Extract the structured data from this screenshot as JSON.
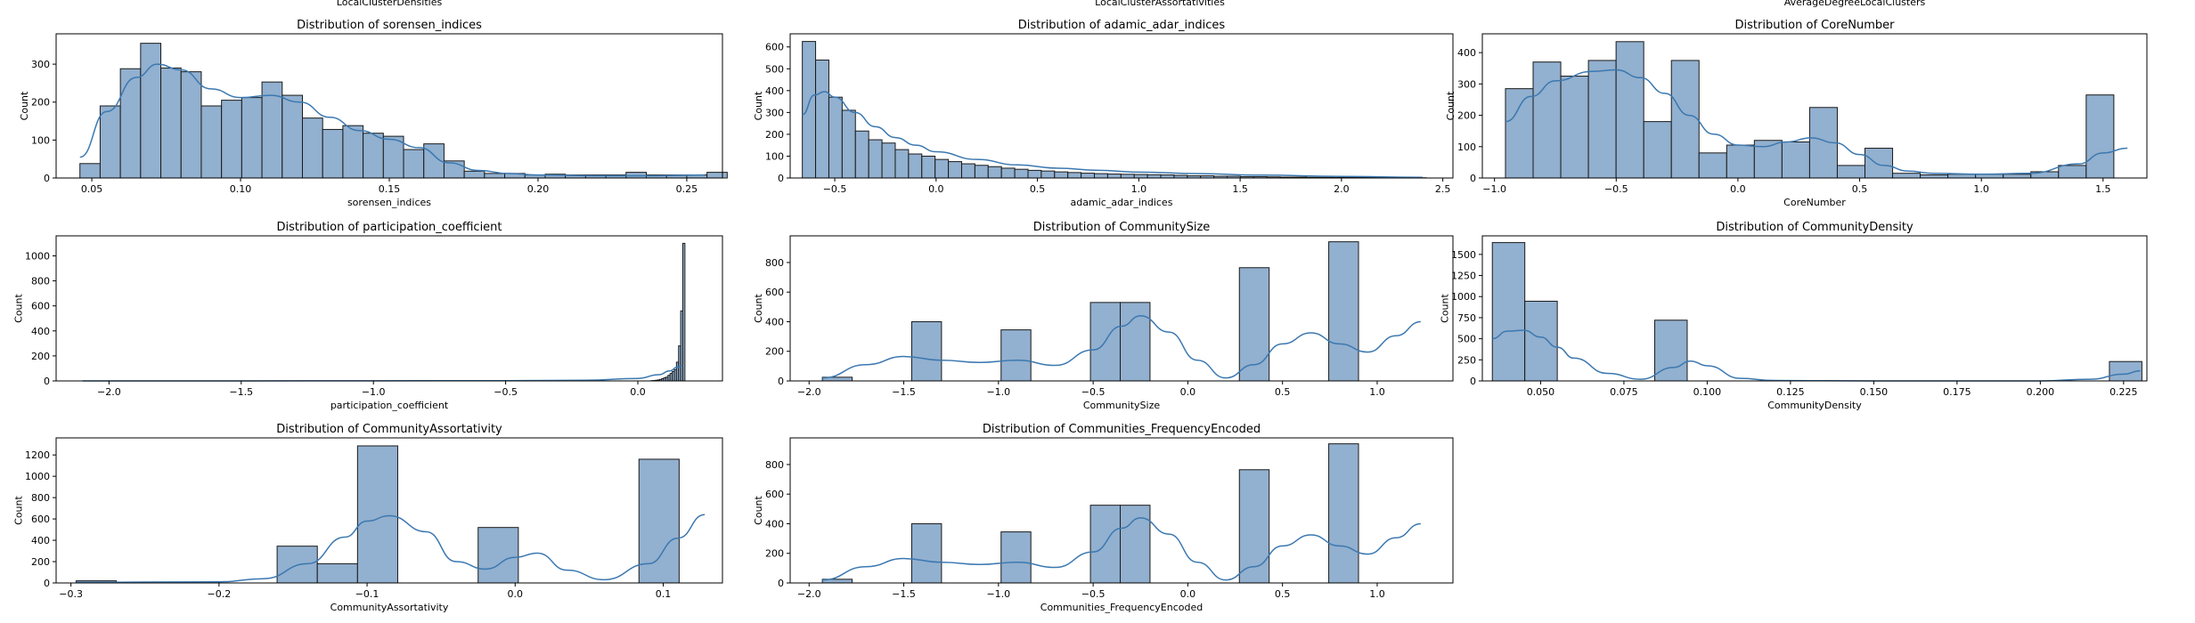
{
  "colors": {
    "bar_fill": "#92b0cf",
    "bar_edge": "#1a1a1a",
    "kde_line": "#3b78b0",
    "axes": "#000000"
  },
  "top_labels": [
    "LocalClusterDensities",
    "LocalClusterAssortativities",
    "AverageDegreeLocalClusters"
  ],
  "chart_data": [
    {
      "type": "bar",
      "title": "Distribution of sorensen_indices",
      "xlabel": "sorensen_indices",
      "ylabel": "Count",
      "xlim": [
        0.038,
        0.262
      ],
      "ylim": [
        0,
        380
      ],
      "xticks": [
        0.05,
        0.1,
        0.15,
        0.2,
        0.25
      ],
      "xtick_labels": [
        "0.05",
        "0.10",
        "0.15",
        "0.20",
        "0.25"
      ],
      "yticks": [
        0,
        100,
        200,
        300
      ],
      "ytick_labels": [
        "0",
        "100",
        "200",
        "300"
      ],
      "bin_start": 0.046,
      "bin_width": 0.0068,
      "values": [
        38,
        190,
        288,
        355,
        290,
        280,
        190,
        205,
        212,
        253,
        218,
        158,
        128,
        138,
        118,
        110,
        75,
        90,
        45,
        18,
        12,
        12,
        8,
        10,
        8,
        8,
        8,
        15,
        8,
        8,
        8,
        15
      ],
      "kde": {
        "x": [
          0.046,
          0.055,
          0.065,
          0.072,
          0.08,
          0.09,
          0.1,
          0.11,
          0.12,
          0.13,
          0.14,
          0.15,
          0.16,
          0.17,
          0.18,
          0.19,
          0.2,
          0.22,
          0.24,
          0.256
        ],
        "y": [
          55,
          175,
          265,
          300,
          285,
          235,
          212,
          218,
          200,
          160,
          125,
          102,
          80,
          40,
          20,
          12,
          8,
          6,
          6,
          8
        ]
      }
    },
    {
      "type": "bar",
      "title": "Distribution of adamic_adar_indices",
      "xlabel": "adamic_adar_indices",
      "ylabel": "Count",
      "xlim": [
        -0.72,
        2.55
      ],
      "ylim": [
        0,
        660
      ],
      "xticks": [
        -0.5,
        0.0,
        0.5,
        1.0,
        1.5,
        2.0,
        2.5
      ],
      "xtick_labels": [
        "−0.5",
        "0.0",
        "0.5",
        "1.0",
        "1.5",
        "2.0",
        "2.5"
      ],
      "yticks": [
        0,
        100,
        200,
        300,
        400,
        500,
        600
      ],
      "ytick_labels": [
        "0",
        "100",
        "200",
        "300",
        "400",
        "500",
        "600"
      ],
      "bin_start": -0.66,
      "bin_width": 0.0655,
      "values": [
        625,
        540,
        370,
        310,
        215,
        175,
        160,
        130,
        110,
        100,
        85,
        75,
        65,
        58,
        52,
        45,
        40,
        35,
        32,
        28,
        25,
        22,
        20,
        18,
        17,
        16,
        15,
        14,
        12,
        10,
        10,
        8,
        8,
        6,
        6,
        5,
        4,
        4,
        3,
        3,
        2,
        2,
        2,
        2,
        1,
        1,
        1
      ],
      "kde": {
        "x": [
          -0.66,
          -0.6,
          -0.55,
          -0.5,
          -0.4,
          -0.3,
          -0.2,
          -0.1,
          0.0,
          0.2,
          0.4,
          0.6,
          0.8,
          1.0,
          1.3,
          1.6,
          2.0,
          2.4
        ],
        "y": [
          290,
          380,
          395,
          370,
          300,
          235,
          185,
          150,
          120,
          85,
          60,
          45,
          35,
          27,
          20,
          13,
          7,
          3
        ]
      }
    },
    {
      "type": "bar",
      "title": "Distribution of CoreNumber",
      "xlabel": "CoreNumber",
      "ylabel": "Count",
      "xlim": [
        -1.05,
        1.68
      ],
      "ylim": [
        0,
        460
      ],
      "xticks": [
        -1.0,
        -0.5,
        0.0,
        0.5,
        1.0,
        1.5
      ],
      "xtick_labels": [
        "−1.0",
        "−0.5",
        "0.0",
        "0.5",
        "1.0",
        "1.5"
      ],
      "yticks": [
        0,
        100,
        200,
        300,
        400
      ],
      "ytick_labels": [
        "0",
        "100",
        "200",
        "300",
        "400"
      ],
      "bin_start": -0.955,
      "bin_width": 0.1136,
      "values": [
        285,
        370,
        325,
        375,
        435,
        180,
        375,
        80,
        105,
        120,
        115,
        225,
        40,
        95,
        15,
        10,
        12,
        12,
        12,
        20,
        40,
        265
      ],
      "kde": {
        "x": [
          -0.955,
          -0.85,
          -0.75,
          -0.6,
          -0.5,
          -0.4,
          -0.3,
          -0.2,
          -0.1,
          0.0,
          0.1,
          0.2,
          0.3,
          0.4,
          0.5,
          0.6,
          0.7,
          0.8,
          1.0,
          1.2,
          1.4,
          1.5,
          1.6
        ],
        "y": [
          180,
          260,
          310,
          340,
          345,
          320,
          270,
          200,
          140,
          105,
          100,
          115,
          128,
          112,
          75,
          40,
          22,
          15,
          12,
          15,
          45,
          80,
          95
        ]
      }
    },
    {
      "type": "bar",
      "title": "Distribution of participation_coefficient",
      "xlabel": "participation_coefficient",
      "ylabel": "Count",
      "xlim": [
        -2.2,
        0.32
      ],
      "ylim": [
        0,
        1160
      ],
      "xticks": [
        -2.0,
        -1.5,
        -1.0,
        -0.5,
        0.0
      ],
      "xtick_labels": [
        "−2.0",
        "−1.5",
        "−1.0",
        "−0.5",
        "0.0"
      ],
      "yticks": [
        0,
        200,
        400,
        600,
        800,
        1000
      ],
      "ytick_labels": [
        "0",
        "200",
        "400",
        "600",
        "800",
        "1000"
      ],
      "bin_start": 0.05,
      "bin_width": 0.008,
      "values": [
        2,
        3,
        5,
        8,
        12,
        18,
        25,
        30,
        45,
        60,
        75,
        90,
        150,
        280,
        560,
        1100
      ],
      "kde": {
        "x": [
          -2.1,
          -1.5,
          -1.0,
          -0.5,
          -0.2,
          0.0,
          0.08,
          0.12,
          0.15,
          0.17
        ],
        "y": [
          0,
          0,
          1,
          2,
          5,
          20,
          50,
          80,
          110,
          120
        ]
      }
    },
    {
      "type": "bar",
      "title": "Distribution of CommunitySize",
      "xlabel": "CommunitySize",
      "ylabel": "Count",
      "xlim": [
        -2.1,
        1.4
      ],
      "ylim": [
        0,
        980
      ],
      "xticks": [
        -2.0,
        -1.5,
        -1.0,
        -0.5,
        0.0,
        0.5,
        1.0
      ],
      "xtick_labels": [
        "−2.0",
        "−1.5",
        "−1.0",
        "−0.5",
        "0.0",
        "0.5",
        "1.0"
      ],
      "yticks": [
        0,
        200,
        400,
        600,
        800
      ],
      "ytick_labels": [
        "0",
        "200",
        "400",
        "600",
        "800"
      ],
      "bin_start": -1.93,
      "bin_width": 0.1573,
      "values": [
        25,
        0,
        0,
        400,
        0,
        0,
        345,
        0,
        0,
        530,
        530,
        0,
        0,
        0,
        765,
        0,
        0,
        940
      ],
      "kde": {
        "x": [
          -1.93,
          -1.7,
          -1.5,
          -1.3,
          -1.1,
          -0.9,
          -0.7,
          -0.5,
          -0.35,
          -0.25,
          -0.1,
          0.05,
          0.2,
          0.35,
          0.5,
          0.65,
          0.8,
          0.95,
          1.1,
          1.23
        ],
        "y": [
          20,
          110,
          165,
          140,
          125,
          140,
          105,
          210,
          370,
          440,
          330,
          140,
          20,
          110,
          250,
          325,
          250,
          195,
          305,
          400
        ]
      }
    },
    {
      "type": "bar",
      "title": "Distribution of CommunityDensity",
      "xlabel": "CommunityDensity",
      "ylabel": "Count",
      "xlim": [
        0.0325,
        0.232
      ],
      "ylim": [
        0,
        1720
      ],
      "xticks": [
        0.05,
        0.075,
        0.1,
        0.125,
        0.15,
        0.175,
        0.2,
        0.225
      ],
      "xtick_labels": [
        "0.050",
        "0.075",
        "0.100",
        "0.125",
        "0.150",
        "0.175",
        "0.200",
        "0.225"
      ],
      "yticks": [
        0,
        250,
        500,
        750,
        1000,
        1250,
        1500
      ],
      "ytick_labels": [
        "0",
        "250",
        "500",
        "750",
        "1000",
        "1250",
        "1500"
      ],
      "bin_start": 0.0355,
      "bin_width": 0.00975,
      "values": [
        1640,
        945,
        0,
        0,
        0,
        720,
        0,
        0,
        0,
        0,
        0,
        0,
        0,
        0,
        0,
        0,
        0,
        0,
        0,
        230
      ],
      "kde": {
        "x": [
          0.0355,
          0.04,
          0.045,
          0.05,
          0.055,
          0.06,
          0.07,
          0.08,
          0.09,
          0.095,
          0.1,
          0.11,
          0.12,
          0.15,
          0.2,
          0.215,
          0.225,
          0.23
        ],
        "y": [
          500,
          590,
          600,
          520,
          400,
          270,
          90,
          20,
          160,
          235,
          180,
          30,
          5,
          0,
          0,
          20,
          80,
          120
        ]
      }
    },
    {
      "type": "bar",
      "title": "Distribution of CommunityAssortativity",
      "xlabel": "CommunityAssortativity",
      "ylabel": "Count",
      "xlim": [
        -0.31,
        0.14
      ],
      "ylim": [
        0,
        1360
      ],
      "xticks": [
        -0.3,
        -0.2,
        -0.1,
        0.0,
        0.1
      ],
      "xtick_labels": [
        "−0.3",
        "−0.2",
        "−0.1",
        "0.0",
        "0.1"
      ],
      "yticks": [
        0,
        200,
        400,
        600,
        800,
        1000,
        1200
      ],
      "ytick_labels": [
        "0",
        "200",
        "400",
        "600",
        "800",
        "1000",
        "1200"
      ],
      "bin_start": -0.2965,
      "bin_width": 0.02715,
      "values": [
        20,
        0,
        0,
        0,
        0,
        345,
        180,
        1285,
        0,
        0,
        520,
        0,
        0,
        0,
        1160
      ],
      "kde": {
        "x": [
          -0.2965,
          -0.25,
          -0.2,
          -0.17,
          -0.14,
          -0.115,
          -0.1,
          -0.085,
          -0.06,
          -0.04,
          -0.02,
          0.0,
          0.015,
          0.035,
          0.06,
          0.09,
          0.11,
          0.128
        ],
        "y": [
          5,
          8,
          10,
          40,
          180,
          430,
          580,
          630,
          480,
          200,
          130,
          240,
          280,
          120,
          30,
          180,
          420,
          640
        ]
      }
    },
    {
      "type": "bar",
      "title": "Distribution of Communities_FrequencyEncoded",
      "xlabel": "Communities_FrequencyEncoded",
      "ylabel": "Count",
      "xlim": [
        -2.1,
        1.4
      ],
      "ylim": [
        0,
        980
      ],
      "xticks": [
        -2.0,
        -1.5,
        -1.0,
        -0.5,
        0.0,
        0.5,
        1.0
      ],
      "xtick_labels": [
        "−2.0",
        "−1.5",
        "−1.0",
        "−0.5",
        "0.0",
        "0.5",
        "1.0"
      ],
      "yticks": [
        0,
        200,
        400,
        600,
        800
      ],
      "ytick_labels": [
        "0",
        "200",
        "400",
        "600",
        "800"
      ],
      "bin_start": -1.93,
      "bin_width": 0.1573,
      "values": [
        25,
        0,
        0,
        400,
        0,
        0,
        345,
        0,
        0,
        525,
        525,
        0,
        0,
        0,
        765,
        0,
        0,
        940
      ],
      "kde": {
        "x": [
          -1.93,
          -1.7,
          -1.5,
          -1.3,
          -1.1,
          -0.9,
          -0.7,
          -0.5,
          -0.35,
          -0.25,
          -0.1,
          0.05,
          0.2,
          0.35,
          0.5,
          0.65,
          0.8,
          0.95,
          1.1,
          1.23
        ],
        "y": [
          20,
          110,
          165,
          140,
          125,
          140,
          105,
          210,
          370,
          440,
          330,
          140,
          20,
          110,
          250,
          325,
          250,
          195,
          305,
          400
        ]
      }
    }
  ]
}
